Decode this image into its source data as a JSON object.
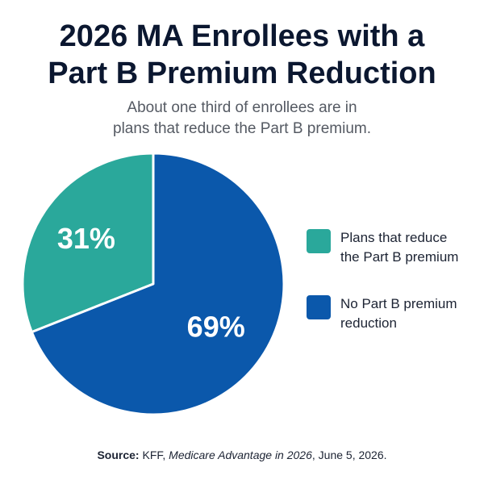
{
  "chart_data": {
    "type": "pie",
    "title": [
      "2026 MA Enrollees with a",
      "Part B Premium Reduction"
    ],
    "subtitle": [
      "About one third of enrollees are in",
      "plans that reduce the Part B premium."
    ],
    "slices": [
      {
        "label": "Plans that reduce the Part B premium",
        "label_lines": [
          "Plans that reduce",
          "the Part B premium"
        ],
        "value": 31,
        "display": "31%",
        "color": "#2aa89b"
      },
      {
        "label": "No Part B premium reduction",
        "label_lines": [
          "No Part B premium",
          "reduction"
        ],
        "value": 69,
        "display": "69%",
        "color": "#0b58ab"
      }
    ],
    "legend_position": "right"
  },
  "source": {
    "label": "Source:",
    "text_pre": " KFF, ",
    "italic": "Medicare Advantage in 2026",
    "text_post": ", June 5, 2026."
  }
}
